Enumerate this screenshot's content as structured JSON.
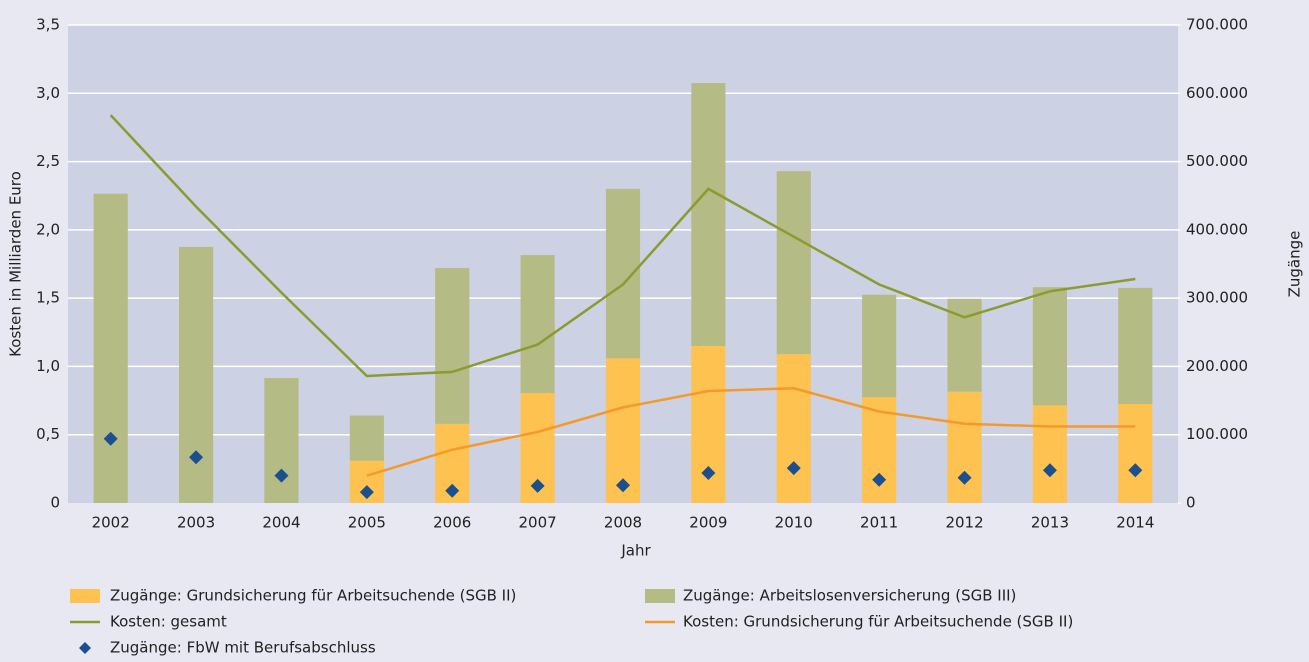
{
  "chart_data": {
    "type": "bar",
    "x_label": "Jahr",
    "y_label": "Kosten in Milliarden Euro",
    "y2_label": "Zugänge",
    "categories": [
      "2002",
      "2003",
      "2004",
      "2005",
      "2006",
      "2007",
      "2008",
      "2009",
      "2010",
      "2011",
      "2012",
      "2013",
      "2014"
    ],
    "ylim": [
      0,
      3.5
    ],
    "yticks": [
      0,
      {
        "value": 0.5,
        "label": "0,5"
      },
      {
        "value": 1.0,
        "label": "1,0"
      },
      {
        "value": 1.5,
        "label": "1,5"
      },
      {
        "value": 2.0,
        "label": "2,0"
      },
      {
        "value": 2.5,
        "label": "2,5"
      },
      {
        "value": 3.0,
        "label": "3,0"
      },
      {
        "value": 3.5,
        "label": "3,5"
      }
    ],
    "y2lim": [
      0,
      700000
    ],
    "y2ticks": [
      0,
      {
        "value": 100000,
        "label": "100.000"
      },
      {
        "value": 200000,
        "label": "200.000"
      },
      {
        "value": 300000,
        "label": "300.000"
      },
      {
        "value": 400000,
        "label": "400.000"
      },
      {
        "value": 500000,
        "label": "500.000"
      },
      {
        "value": 600000,
        "label": "600.000"
      },
      {
        "value": 700000,
        "label": "700.000"
      }
    ],
    "grid": true,
    "stacked": true,
    "series": [
      {
        "name": "Zugänge: Grundsicherung für Arbeitsuchende (SGB II)",
        "type": "bar",
        "axis": "y2",
        "color": "#fdc24f",
        "values": [
          0,
          0,
          0,
          62000,
          116000,
          161000,
          212000,
          230000,
          218000,
          155000,
          163000,
          143000,
          145000
        ]
      },
      {
        "name": "Zugänge: Arbeitslosenversicherung (SGB III)",
        "type": "bar",
        "axis": "y2",
        "color": "#b4bb84",
        "values": [
          453000,
          375000,
          183000,
          66000,
          228000,
          202000,
          248000,
          385000,
          268000,
          150000,
          136000,
          173000,
          170000
        ]
      },
      {
        "name": "Kosten: gesamt",
        "type": "line",
        "color": "#8b9b30",
        "values": [
          2.84,
          2.17,
          1.54,
          0.93,
          0.96,
          1.16,
          1.6,
          2.3,
          1.95,
          1.6,
          1.36,
          1.55,
          1.64
        ]
      },
      {
        "name": "Kosten: Grundsicherung für Arbeitsuchende (SGB II)",
        "type": "line",
        "color": "#f39a2c",
        "values": [
          null,
          null,
          null,
          0.2,
          0.39,
          0.52,
          0.7,
          0.82,
          0.84,
          0.67,
          0.58,
          0.56,
          0.56
        ]
      },
      {
        "name": "Zugänge: FbW mit Berufsabschluss",
        "type": "scatter",
        "axis": "y2",
        "color": "#1b4f8e",
        "values": [
          94000,
          67000,
          40000,
          16000,
          18000,
          25000,
          26000,
          44000,
          51000,
          34000,
          37000,
          48000,
          48000
        ]
      }
    ]
  }
}
